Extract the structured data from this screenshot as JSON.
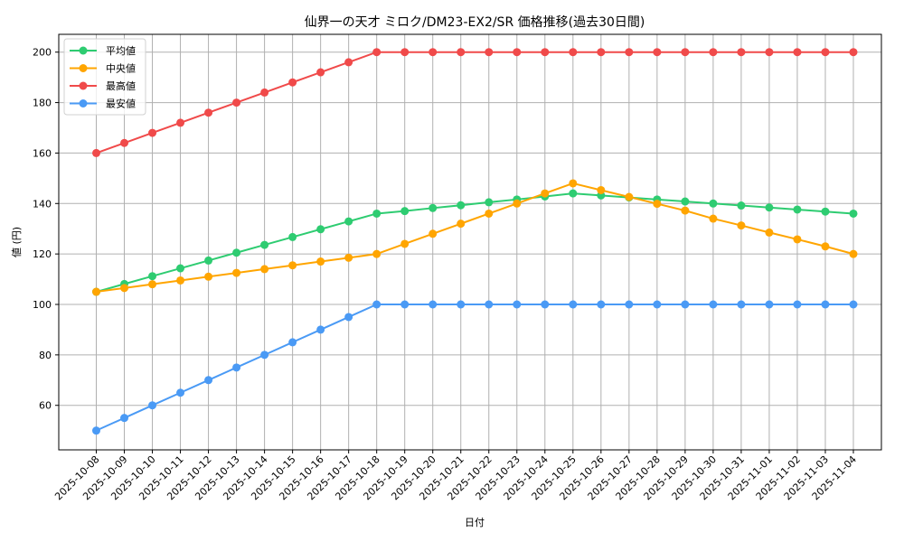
{
  "chart_data": {
    "type": "line",
    "title": "仙界一の天才 ミロク/DM23-EX2/SR 価格推移(過去30日間)",
    "xlabel": "日付",
    "ylabel": "値 (円)",
    "ylim": [
      43,
      207
    ],
    "yticks": [
      60,
      80,
      100,
      120,
      140,
      160,
      180,
      200
    ],
    "grid": true,
    "legend_position": "upper left",
    "categories": [
      "2025-10-08",
      "2025-10-09",
      "2025-10-10",
      "2025-10-11",
      "2025-10-12",
      "2025-10-13",
      "2025-10-14",
      "2025-10-15",
      "2025-10-16",
      "2025-10-17",
      "2025-10-18",
      "2025-10-19",
      "2025-10-20",
      "2025-10-21",
      "2025-10-22",
      "2025-10-23",
      "2025-10-24",
      "2025-10-25",
      "2025-10-26",
      "2025-10-27",
      "2025-10-28",
      "2025-10-29",
      "2025-10-30",
      "2025-10-31",
      "2025-11-01",
      "2025-11-02",
      "2025-11-03",
      "2025-11-04"
    ],
    "series": [
      {
        "name": "平均値",
        "color": "#2ecc71",
        "values": [
          105,
          108.1,
          111.2,
          114.3,
          117.4,
          120.5,
          123.6,
          126.7,
          129.8,
          132.9,
          136,
          137,
          138.2,
          139.3,
          140.5,
          141.6,
          142.8,
          144,
          143.2,
          142.4,
          141.6,
          140.8,
          140,
          139.2,
          138.4,
          137.6,
          136.8,
          136
        ]
      },
      {
        "name": "中央値",
        "color": "#ffa500",
        "values": [
          105,
          106.5,
          108,
          109.5,
          111,
          112.5,
          114,
          115.5,
          117,
          118.5,
          120,
          124,
          128,
          132,
          136,
          140,
          144,
          148,
          145.3,
          142.6,
          139.9,
          137.2,
          134,
          131.3,
          128.5,
          125.8,
          123,
          120
        ]
      },
      {
        "name": "最高値",
        "color": "#f04a4a",
        "values": [
          160,
          164,
          168,
          172,
          176,
          180,
          184,
          188,
          192,
          196,
          200,
          200,
          200,
          200,
          200,
          200,
          200,
          200,
          200,
          200,
          200,
          200,
          200,
          200,
          200,
          200,
          200,
          200
        ]
      },
      {
        "name": "最安値",
        "color": "#4a9af5",
        "values": [
          50,
          55,
          60,
          65,
          70,
          75,
          80,
          85,
          90,
          95,
          100,
          100,
          100,
          100,
          100,
          100,
          100,
          100,
          100,
          100,
          100,
          100,
          100,
          100,
          100,
          100,
          100,
          100
        ]
      }
    ]
  }
}
